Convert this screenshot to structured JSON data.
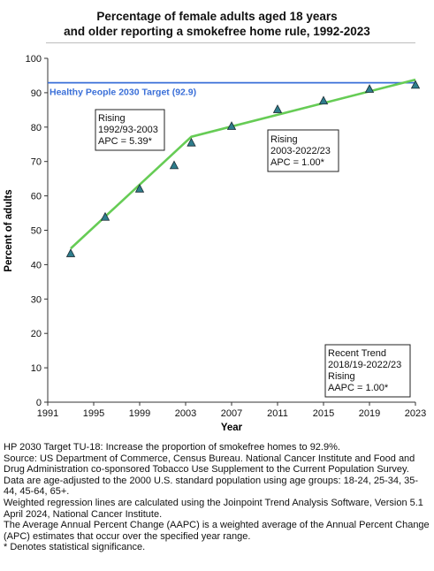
{
  "title_lines": [
    "Percentage of female adults aged 18 years",
    "and older reporting a smokefree home rule, 1992-2023"
  ],
  "chart_data": {
    "type": "line",
    "title": "Percentage of female adults aged 18 years and older reporting a smokefree home rule, 1992-2023",
    "xlabel": "Year",
    "ylabel": "Percent of adults",
    "xlim": [
      1991,
      2023
    ],
    "ylim": [
      0,
      100
    ],
    "x_ticks": [
      1991,
      1995,
      1999,
      2003,
      2007,
      2011,
      2015,
      2019,
      2023
    ],
    "y_ticks": [
      0,
      10,
      20,
      30,
      40,
      50,
      60,
      70,
      80,
      90,
      100
    ],
    "grid": false,
    "series": [
      {
        "kind": "observed",
        "marker": "triangle",
        "color": "#2e7d8c",
        "x": [
          1993,
          1996,
          1999,
          2002,
          2003.5,
          2007,
          2011,
          2015,
          2019,
          2023
        ],
        "y": [
          43.2,
          53.8,
          62.0,
          68.8,
          75.4,
          80.2,
          85.1,
          87.6,
          91.0,
          92.2
        ]
      },
      {
        "kind": "joinpoint-fit",
        "color": "#66cc55",
        "x": [
          1993,
          2003.5,
          2023
        ],
        "y": [
          44.7,
          77.2,
          93.8
        ]
      }
    ],
    "target": {
      "label": "Healthy People 2030 Target (92.9)",
      "value": 92.9,
      "color": "#3a6fd8"
    },
    "annotations": [
      {
        "lines": [
          "Rising",
          "1992/93-2003",
          "APC =  5.39*"
        ]
      },
      {
        "lines": [
          "Rising",
          "2003-2022/23",
          "APC =  1.00*"
        ]
      },
      {
        "lines": [
          "Recent Trend",
          "2018/19-2022/23",
          "Rising",
          "AAPC =  1.00*"
        ]
      }
    ]
  },
  "footnotes": [
    "HP 2030 Target TU-18: Increase the proportion of smokefree homes to 92.9%.",
    "Source: US Department of Commerce, Census Bureau. National Cancer Institute and Food and Drug Administration co-sponsored Tobacco Use Supplement to the Current Population Survey.",
    "Data are age-adjusted to the 2000 U.S. standard population using age groups: 18-24, 25-34, 35-44, 45-64, 65+.",
    "Weighted regression lines are calculated using the Joinpoint Trend Analysis Software, Version 5.1 April 2024, National Cancer Institute.",
    "The Average Annual Percent Change (AAPC) is a weighted average of the Annual Percent Change (APC) estimates that occur over the specified year range.",
    "* Denotes statistical significance."
  ]
}
